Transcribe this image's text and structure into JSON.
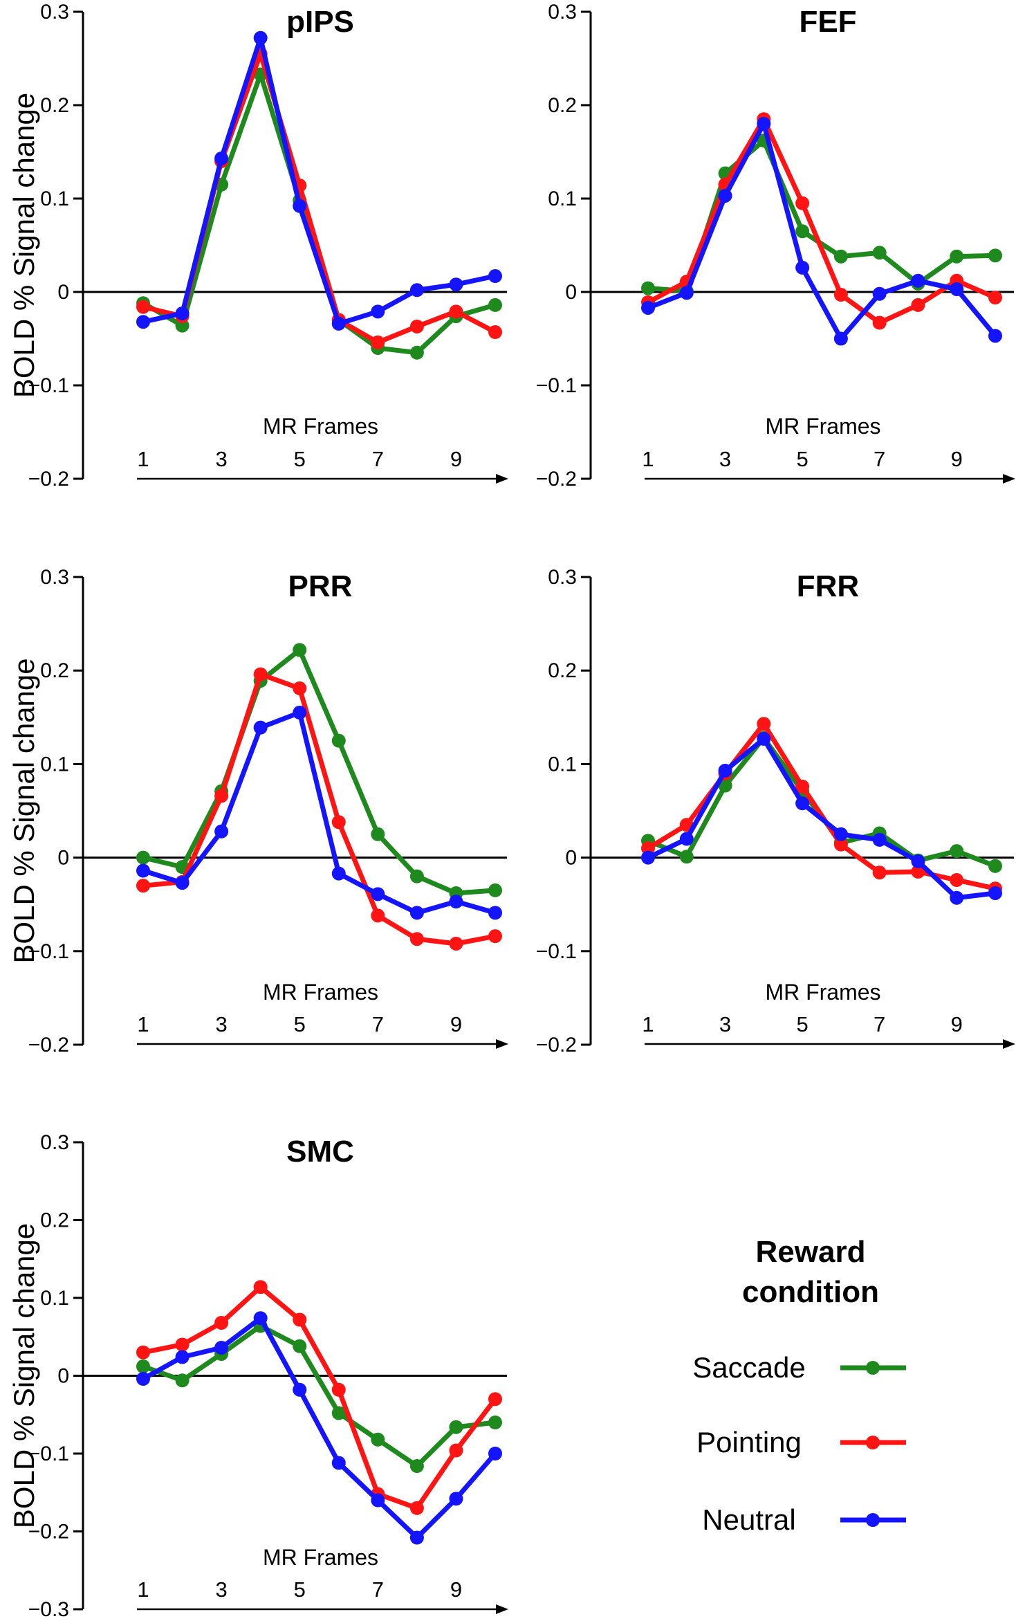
{
  "colors": {
    "Saccade": "#1e8a1e",
    "Pointing": "#ff1414",
    "Neutral": "#1414ff"
  },
  "legend": {
    "title_line1": "Reward",
    "title_line2": "condition",
    "entries": [
      "Saccade",
      "Pointing",
      "Neutral"
    ]
  },
  "chart_data": [
    {
      "type": "line",
      "title": "pIPS",
      "xlabel": "MR Frames",
      "ylabel": "BOLD % Signal change",
      "x": [
        1,
        2,
        3,
        4,
        5,
        6,
        7,
        8,
        9,
        10
      ],
      "x_tick_labels": [
        "1",
        "3",
        "5",
        "7",
        "9"
      ],
      "x_tick_values": [
        1,
        3,
        5,
        7,
        9
      ],
      "y_tick_labels": [
        "0.3",
        "0.2",
        "0.1",
        "0",
        "−0.1",
        "−0.2"
      ],
      "y_tick_values": [
        0.3,
        0.2,
        0.1,
        0,
        -0.1,
        -0.2
      ],
      "ylim": [
        -0.2,
        0.3
      ],
      "series": [
        {
          "name": "Saccade",
          "values": [
            -0.012,
            -0.036,
            0.115,
            0.233,
            0.098,
            -0.03,
            -0.06,
            -0.065,
            -0.026,
            -0.014
          ]
        },
        {
          "name": "Pointing",
          "values": [
            -0.016,
            -0.026,
            0.14,
            0.255,
            0.114,
            -0.03,
            -0.054,
            -0.037,
            -0.021,
            -0.043
          ]
        },
        {
          "name": "Neutral",
          "values": [
            -0.032,
            -0.023,
            0.143,
            0.272,
            0.092,
            -0.034,
            -0.021,
            0.002,
            0.008,
            0.017
          ]
        }
      ]
    },
    {
      "type": "line",
      "title": "FEF",
      "xlabel": "MR Frames",
      "ylabel": "",
      "x": [
        1,
        2,
        3,
        4,
        5,
        6,
        7,
        8,
        9,
        10
      ],
      "x_tick_labels": [
        "1",
        "3",
        "5",
        "7",
        "9"
      ],
      "x_tick_values": [
        1,
        3,
        5,
        7,
        9
      ],
      "y_tick_labels": [
        "0.3",
        "0.2",
        "0.1",
        "0",
        "−0.1",
        "−0.2"
      ],
      "y_tick_values": [
        0.3,
        0.2,
        0.1,
        0,
        -0.1,
        -0.2
      ],
      "ylim": [
        -0.2,
        0.3
      ],
      "series": [
        {
          "name": "Saccade",
          "values": [
            0.004,
            0.001,
            0.127,
            0.162,
            0.065,
            0.038,
            0.042,
            0.009,
            0.038,
            0.039
          ]
        },
        {
          "name": "Pointing",
          "values": [
            -0.011,
            0.011,
            0.115,
            0.185,
            0.095,
            -0.003,
            -0.033,
            -0.014,
            0.012,
            -0.006
          ]
        },
        {
          "name": "Neutral",
          "values": [
            -0.017,
            -0.001,
            0.103,
            0.18,
            0.026,
            -0.05,
            -0.002,
            0.012,
            0.003,
            -0.047
          ]
        }
      ]
    },
    {
      "type": "line",
      "title": "PRR",
      "xlabel": "MR Frames",
      "ylabel": "BOLD % Signal change",
      "x": [
        1,
        2,
        3,
        4,
        5,
        6,
        7,
        8,
        9,
        10
      ],
      "x_tick_labels": [
        "1",
        "3",
        "5",
        "7",
        "9"
      ],
      "x_tick_values": [
        1,
        3,
        5,
        7,
        9
      ],
      "y_tick_labels": [
        "0.3",
        "0.2",
        "0.1",
        "0",
        "−0.1",
        "−0.2"
      ],
      "y_tick_values": [
        0.3,
        0.2,
        0.1,
        0,
        -0.1,
        -0.2
      ],
      "ylim": [
        -0.2,
        0.3
      ],
      "series": [
        {
          "name": "Saccade",
          "values": [
            0.0,
            -0.01,
            0.071,
            0.189,
            0.222,
            0.125,
            0.025,
            -0.02,
            -0.038,
            -0.035
          ]
        },
        {
          "name": "Pointing",
          "values": [
            -0.03,
            -0.026,
            0.066,
            0.196,
            0.181,
            0.038,
            -0.062,
            -0.087,
            -0.092,
            -0.084
          ]
        },
        {
          "name": "Neutral",
          "values": [
            -0.014,
            -0.027,
            0.028,
            0.139,
            0.155,
            -0.017,
            -0.039,
            -0.059,
            -0.047,
            -0.059
          ]
        }
      ]
    },
    {
      "type": "line",
      "title": "FRR",
      "xlabel": "MR Frames",
      "ylabel": "",
      "x": [
        1,
        2,
        3,
        4,
        5,
        6,
        7,
        8,
        9,
        10
      ],
      "x_tick_labels": [
        "1",
        "3",
        "5",
        "7",
        "9"
      ],
      "x_tick_values": [
        1,
        3,
        5,
        7,
        9
      ],
      "y_tick_labels": [
        "0.3",
        "0.2",
        "0.1",
        "0",
        "−0.1",
        "−0.2"
      ],
      "y_tick_values": [
        0.3,
        0.2,
        0.1,
        0,
        -0.1,
        -0.2
      ],
      "ylim": [
        -0.2,
        0.3
      ],
      "series": [
        {
          "name": "Saccade",
          "values": [
            0.018,
            0.001,
            0.077,
            0.128,
            0.071,
            0.016,
            0.026,
            -0.003,
            0.007,
            -0.009
          ]
        },
        {
          "name": "Pointing",
          "values": [
            0.01,
            0.035,
            0.09,
            0.143,
            0.076,
            0.014,
            -0.016,
            -0.015,
            -0.024,
            -0.033
          ]
        },
        {
          "name": "Neutral",
          "values": [
            0.0,
            0.02,
            0.093,
            0.127,
            0.058,
            0.025,
            0.019,
            -0.004,
            -0.043,
            -0.038
          ]
        }
      ]
    },
    {
      "type": "line",
      "title": "SMC",
      "xlabel": "MR Frames",
      "ylabel": "BOLD % Signal change",
      "x": [
        1,
        2,
        3,
        4,
        5,
        6,
        7,
        8,
        9,
        10
      ],
      "x_tick_labels": [
        "1",
        "3",
        "5",
        "7",
        "9"
      ],
      "x_tick_values": [
        1,
        3,
        5,
        7,
        9
      ],
      "y_tick_labels": [
        "0.3",
        "0.2",
        "0.1",
        "0",
        "−0.1",
        "−0.2",
        "−0.3"
      ],
      "y_tick_values": [
        0.3,
        0.2,
        0.1,
        0,
        -0.1,
        -0.2,
        -0.3
      ],
      "ylim": [
        -0.3,
        0.3
      ],
      "series": [
        {
          "name": "Saccade",
          "values": [
            0.012,
            -0.006,
            0.028,
            0.064,
            0.038,
            -0.048,
            -0.082,
            -0.116,
            -0.066,
            -0.06
          ]
        },
        {
          "name": "Pointing",
          "values": [
            0.03,
            0.04,
            0.068,
            0.114,
            0.072,
            -0.018,
            -0.152,
            -0.17,
            -0.096,
            -0.03
          ]
        },
        {
          "name": "Neutral",
          "values": [
            -0.004,
            0.024,
            0.036,
            0.074,
            -0.018,
            -0.112,
            -0.16,
            -0.208,
            -0.158,
            -0.1
          ]
        }
      ]
    }
  ]
}
